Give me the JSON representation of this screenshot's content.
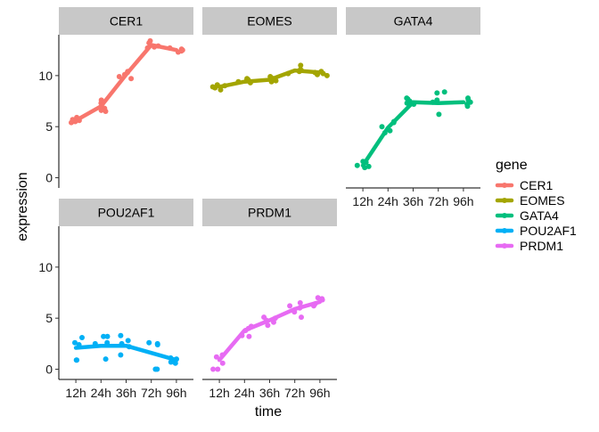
{
  "chart_data": {
    "type": "line",
    "facet_by": "gene",
    "xlabel": "time",
    "ylabel": "expression",
    "x_categories": [
      "12h",
      "24h",
      "36h",
      "72h",
      "96h"
    ],
    "y_ticks": [
      0,
      5,
      10
    ],
    "ylim": [
      -1,
      14
    ],
    "grid": false,
    "legend_title": "gene",
    "legend_position": "right",
    "series": [
      {
        "name": "CER1",
        "color": "#F8766D",
        "points": [
          [
            "12h",
            5.4
          ],
          [
            "12h",
            5.6
          ],
          [
            "12h",
            5.9
          ],
          [
            "12h",
            5.5
          ],
          [
            "12h",
            5.7
          ],
          [
            "24h",
            6.5
          ],
          [
            "24h",
            6.8
          ],
          [
            "24h",
            7.3
          ],
          [
            "24h",
            7.6
          ],
          [
            "24h",
            6.6
          ],
          [
            "36h",
            9.9
          ],
          [
            "36h",
            10.3
          ],
          [
            "36h",
            10.4
          ],
          [
            "36h",
            10.1
          ],
          [
            "36h",
            9.7
          ],
          [
            "72h",
            13.2
          ],
          [
            "72h",
            13.4
          ],
          [
            "72h",
            12.7
          ],
          [
            "72h",
            12.9
          ],
          [
            "72h",
            12.8
          ],
          [
            "96h",
            12.6
          ],
          [
            "96h",
            12.4
          ],
          [
            "96h",
            12.7
          ],
          [
            "96h",
            12.3
          ],
          [
            "96h",
            12.5
          ]
        ],
        "trend": [
          5.6,
          7.0,
          10.1,
          13.0,
          12.5
        ]
      },
      {
        "name": "EOMES",
        "color": "#A3A500",
        "points": [
          [
            "12h",
            8.6
          ],
          [
            "12h",
            8.9
          ],
          [
            "12h",
            9.1
          ],
          [
            "12h",
            9.0
          ],
          [
            "12h",
            8.8
          ],
          [
            "24h",
            9.3
          ],
          [
            "24h",
            9.5
          ],
          [
            "24h",
            9.6
          ],
          [
            "24h",
            9.4
          ],
          [
            "24h",
            9.7
          ],
          [
            "36h",
            9.5
          ],
          [
            "36h",
            9.6
          ],
          [
            "36h",
            9.9
          ],
          [
            "36h",
            9.4
          ],
          [
            "36h",
            9.8
          ],
          [
            "72h",
            10.5
          ],
          [
            "72h",
            11.0
          ],
          [
            "72h",
            10.2
          ],
          [
            "72h",
            10.4
          ],
          [
            "72h",
            10.6
          ],
          [
            "96h",
            10.1
          ],
          [
            "96h",
            10.3
          ],
          [
            "96h",
            10.0
          ],
          [
            "96h",
            10.4
          ],
          [
            "96h",
            10.2
          ]
        ],
        "trend": [
          8.9,
          9.4,
          9.6,
          10.5,
          10.3
        ]
      },
      {
        "name": "GATA4",
        "color": "#00BF7D",
        "points": [
          [
            "12h",
            1.0
          ],
          [
            "12h",
            1.6
          ],
          [
            "12h",
            1.1
          ],
          [
            "12h",
            1.5
          ],
          [
            "12h",
            1.2
          ],
          [
            "24h",
            4.4
          ],
          [
            "24h",
            5.4
          ],
          [
            "24h",
            4.6
          ],
          [
            "24h",
            5.5
          ],
          [
            "24h",
            5.0
          ],
          [
            "36h",
            7.7
          ],
          [
            "36h",
            7.3
          ],
          [
            "36h",
            7.8
          ],
          [
            "36h",
            7.5
          ],
          [
            "36h",
            7.2
          ],
          [
            "72h",
            6.2
          ],
          [
            "72h",
            8.3
          ],
          [
            "72h",
            7.6
          ],
          [
            "72h",
            8.4
          ],
          [
            "72h",
            7.4
          ],
          [
            "96h",
            7.8
          ],
          [
            "96h",
            7.2
          ],
          [
            "96h",
            7.4
          ],
          [
            "96h",
            7.0
          ],
          [
            "96h",
            7.6
          ]
        ],
        "trend": [
          1.2,
          4.9,
          7.4,
          7.3,
          7.4
        ]
      },
      {
        "name": "POU2AF1",
        "color": "#00B0F6",
        "points": [
          [
            "12h",
            0.9
          ],
          [
            "12h",
            3.1
          ],
          [
            "12h",
            2.4
          ],
          [
            "12h",
            0.9
          ],
          [
            "12h",
            2.6
          ],
          [
            "24h",
            1.0
          ],
          [
            "24h",
            3.2
          ],
          [
            "24h",
            2.5
          ],
          [
            "24h",
            3.2
          ],
          [
            "24h",
            2.6
          ],
          [
            "36h",
            2.8
          ],
          [
            "36h",
            3.3
          ],
          [
            "36h",
            2.5
          ],
          [
            "36h",
            1.4
          ],
          [
            "36h",
            2.2
          ],
          [
            "72h",
            0.0
          ],
          [
            "72h",
            2.5
          ],
          [
            "72h",
            2.6
          ],
          [
            "72h",
            0.0
          ],
          [
            "72h",
            2.4
          ],
          [
            "96h",
            0.7
          ],
          [
            "96h",
            1.0
          ],
          [
            "96h",
            0.6
          ],
          [
            "96h",
            1.1
          ],
          [
            "96h",
            0.9
          ]
        ],
        "trend": [
          2.1,
          2.3,
          2.3,
          1.6,
          0.9
        ]
      },
      {
        "name": "PRDM1",
        "color": "#E76BF3",
        "points": [
          [
            "12h",
            1.4
          ],
          [
            "12h",
            0.0
          ],
          [
            "12h",
            0.6
          ],
          [
            "12h",
            1.2
          ],
          [
            "12h",
            0.0
          ],
          [
            "24h",
            3.2
          ],
          [
            "24h",
            4.2
          ],
          [
            "24h",
            3.8
          ],
          [
            "24h",
            3.3
          ],
          [
            "24h",
            4.0
          ],
          [
            "36h",
            4.3
          ],
          [
            "36h",
            4.6
          ],
          [
            "36h",
            5.1
          ],
          [
            "36h",
            5.0
          ],
          [
            "36h",
            4.8
          ],
          [
            "72h",
            6.2
          ],
          [
            "72h",
            5.1
          ],
          [
            "72h",
            6.0
          ],
          [
            "72h",
            6.5
          ],
          [
            "72h",
            5.6
          ],
          [
            "96h",
            6.2
          ],
          [
            "96h",
            7.0
          ],
          [
            "96h",
            6.8
          ],
          [
            "96h",
            6.4
          ],
          [
            "96h",
            6.9
          ]
        ],
        "trend": [
          0.9,
          3.8,
          4.8,
          5.9,
          6.6
        ]
      }
    ]
  }
}
